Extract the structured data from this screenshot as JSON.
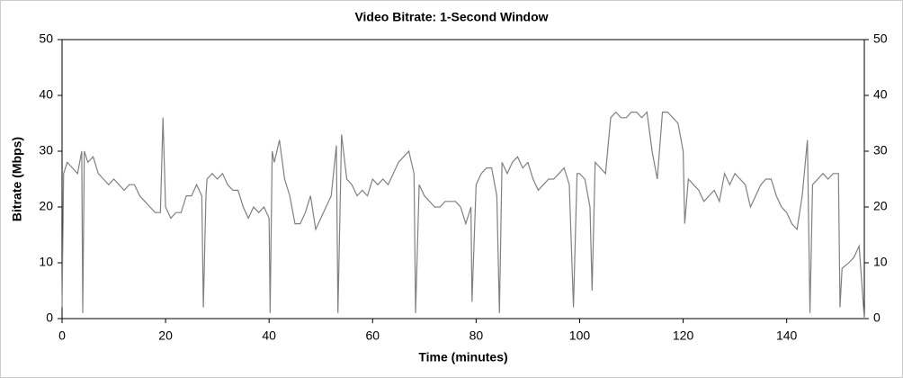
{
  "chart_data": {
    "type": "line",
    "title": "Video Bitrate: 1-Second Window",
    "x_label": "Time (minutes)",
    "y_label": "Bitrate (Mbps)",
    "color": "#808080",
    "x": [
      0,
      0.3,
      1,
      2,
      3,
      3.8,
      4,
      4.3,
      5,
      6,
      7,
      8,
      9,
      10,
      11,
      12,
      13,
      14,
      15,
      16,
      17,
      18,
      19,
      19.5,
      20,
      21,
      22,
      23,
      24,
      25,
      26,
      27,
      27.3,
      27.8,
      28,
      29,
      30,
      31,
      32,
      33,
      34,
      35,
      36,
      37,
      38,
      39,
      40,
      40.2,
      40.6,
      41,
      42,
      43,
      44,
      45,
      46,
      47,
      48,
      49,
      50,
      51,
      52,
      53,
      53.3,
      54,
      55,
      56,
      57,
      58,
      59,
      60,
      61,
      62,
      63,
      64,
      65,
      66,
      67,
      68,
      68.3,
      69,
      70,
      71,
      72,
      73,
      74,
      75,
      76,
      77,
      78,
      79,
      79.2,
      80,
      81,
      82,
      83,
      84,
      84.5,
      85,
      86,
      87,
      88,
      89,
      90,
      91,
      92,
      93,
      94,
      95,
      96,
      97,
      98,
      98.8,
      99.5,
      100,
      101,
      102,
      102.4,
      103,
      104,
      105,
      106,
      107,
      108,
      109,
      110,
      111,
      112,
      113,
      114,
      115,
      116,
      117,
      118,
      119,
      120,
      120.3,
      121,
      122,
      123,
      124,
      125,
      126,
      127,
      128,
      129,
      130,
      131,
      132,
      133,
      134,
      135,
      136,
      137,
      138,
      139,
      140,
      141,
      142,
      143,
      144,
      144.5,
      145,
      146,
      147,
      148,
      149,
      150,
      150.3,
      150.7,
      152,
      153,
      154,
      155
    ],
    "values": [
      2,
      26,
      28,
      27,
      26,
      30,
      1,
      30,
      28,
      29,
      26,
      25,
      24,
      25,
      24,
      23,
      24,
      24,
      22,
      21,
      20,
      19,
      19,
      36,
      20,
      18,
      19,
      19,
      22,
      22,
      24,
      22,
      2,
      22,
      25,
      26,
      25,
      26,
      24,
      23,
      23,
      20,
      18,
      20,
      19,
      20,
      18,
      1,
      30,
      28,
      32,
      25,
      22,
      17,
      17,
      19,
      22,
      16,
      18,
      20,
      22,
      31,
      1,
      33,
      25,
      24,
      22,
      23,
      22,
      25,
      24,
      25,
      24,
      26,
      28,
      29,
      30,
      26,
      1,
      24,
      22,
      21,
      20,
      20,
      21,
      21,
      21,
      20,
      17,
      20,
      3,
      24,
      26,
      27,
      27,
      22,
      1,
      28,
      26,
      28,
      29,
      27,
      28,
      25,
      23,
      24,
      25,
      25,
      26,
      27,
      24,
      2,
      26,
      26,
      25,
      20,
      5,
      28,
      27,
      26,
      36,
      37,
      36,
      36,
      37,
      37,
      36,
      37,
      30,
      25,
      37,
      37,
      36,
      35,
      30,
      17,
      25,
      24,
      23,
      21,
      22,
      23,
      21,
      26,
      24,
      26,
      25,
      24,
      20,
      22,
      24,
      25,
      25,
      22,
      20,
      19,
      17,
      16,
      22,
      32,
      1,
      24,
      25,
      26,
      25,
      26,
      26,
      2,
      9,
      10,
      11,
      13,
      0
    ],
    "xlim": [
      0,
      155
    ],
    "xticks": [
      0,
      20,
      40,
      60,
      80,
      100,
      120,
      140
    ],
    "ylim": [
      0,
      50
    ],
    "yticks": [
      0,
      10,
      20,
      30,
      40,
      50
    ],
    "y2lim": [
      0,
      50
    ],
    "y2ticks": [
      0,
      10,
      20,
      30,
      40,
      50
    ]
  }
}
